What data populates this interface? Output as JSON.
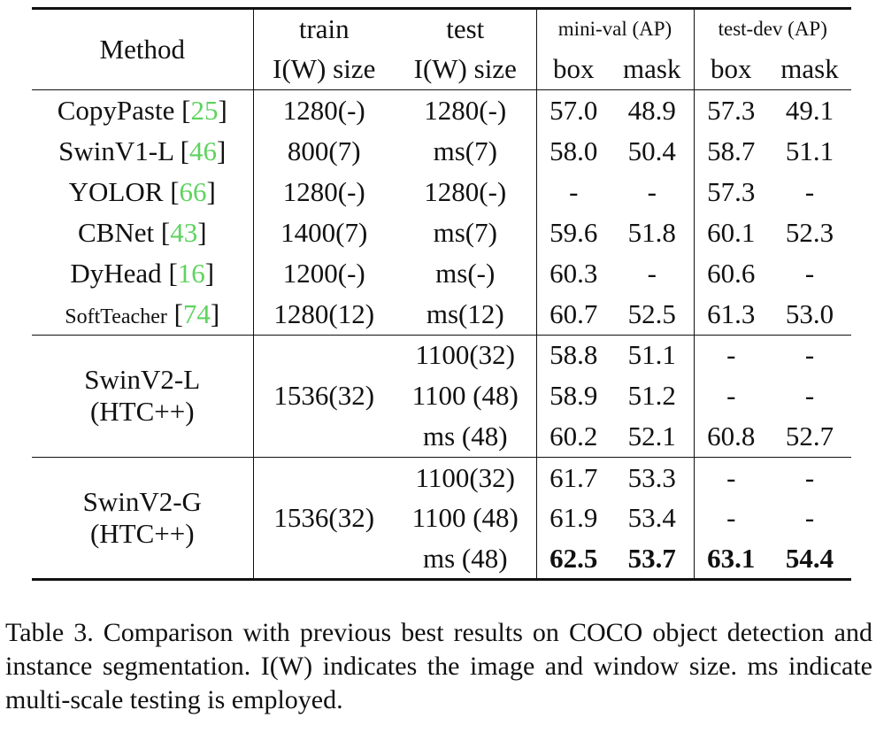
{
  "table": {
    "header": {
      "method": "Method",
      "train_top": "train",
      "train_bottom": "I(W) size",
      "test_top": "test",
      "test_bottom": "I(W) size",
      "minival": "mini-val (AP)",
      "testdev": "test-dev (AP)",
      "box": "box",
      "mask": "mask"
    },
    "rows": [
      {
        "method": "CopyPaste",
        "cite": "25",
        "train": "1280(-)",
        "test": "1280(-)",
        "mv_box": "57.0",
        "mv_mask": "48.9",
        "td_box": "57.3",
        "td_mask": "49.1"
      },
      {
        "method": "SwinV1-L",
        "cite": "46",
        "train": "800(7)",
        "test": "ms(7)",
        "mv_box": "58.0",
        "mv_mask": "50.4",
        "td_box": "58.7",
        "td_mask": "51.1"
      },
      {
        "method": "YOLOR",
        "cite": "66",
        "train": "1280(-)",
        "test": "1280(-)",
        "mv_box": "-",
        "mv_mask": "-",
        "td_box": "57.3",
        "td_mask": "-"
      },
      {
        "method": "CBNet",
        "cite": "43",
        "train": "1400(7)",
        "test": "ms(7)",
        "mv_box": "59.6",
        "mv_mask": "51.8",
        "td_box": "60.1",
        "td_mask": "52.3"
      },
      {
        "method": "DyHead",
        "cite": "16",
        "train": "1200(-)",
        "test": "ms(-)",
        "mv_box": "60.3",
        "mv_mask": "-",
        "td_box": "60.6",
        "td_mask": "-"
      },
      {
        "method": "SoftTeacher",
        "cite": "74",
        "train": "1280(12)",
        "test": "ms(12)",
        "mv_box": "60.7",
        "mv_mask": "52.5",
        "td_box": "61.3",
        "td_mask": "53.0"
      }
    ],
    "groups": [
      {
        "method_line1": "SwinV2-L",
        "method_line2": "(HTC++)",
        "train": "1536(32)",
        "subrows": [
          {
            "test": "1100(32)",
            "mv_box": "58.8",
            "mv_mask": "51.1",
            "td_box": "-",
            "td_mask": "-"
          },
          {
            "test": "1100 (48)",
            "mv_box": "58.9",
            "mv_mask": "51.2",
            "td_box": "-",
            "td_mask": "-"
          },
          {
            "test": "ms (48)",
            "mv_box": "60.2",
            "mv_mask": "52.1",
            "td_box": "60.8",
            "td_mask": "52.7"
          }
        ]
      },
      {
        "method_line1": "SwinV2-G",
        "method_line2": "(HTC++)",
        "train": "1536(32)",
        "subrows": [
          {
            "test": "1100(32)",
            "mv_box": "61.7",
            "mv_mask": "53.3",
            "td_box": "-",
            "td_mask": "-"
          },
          {
            "test": "1100 (48)",
            "mv_box": "61.9",
            "mv_mask": "53.4",
            "td_box": "-",
            "td_mask": "-"
          },
          {
            "test": "ms (48)",
            "mv_box": "62.5",
            "mv_mask": "53.7",
            "td_box": "63.1",
            "td_mask": "54.4"
          }
        ]
      }
    ]
  },
  "caption": "Table 3. Comparison with previous best results on COCO object detection and instance segmentation. I(W) indicates the image and window size. ms indicate multi-scale testing is employed."
}
